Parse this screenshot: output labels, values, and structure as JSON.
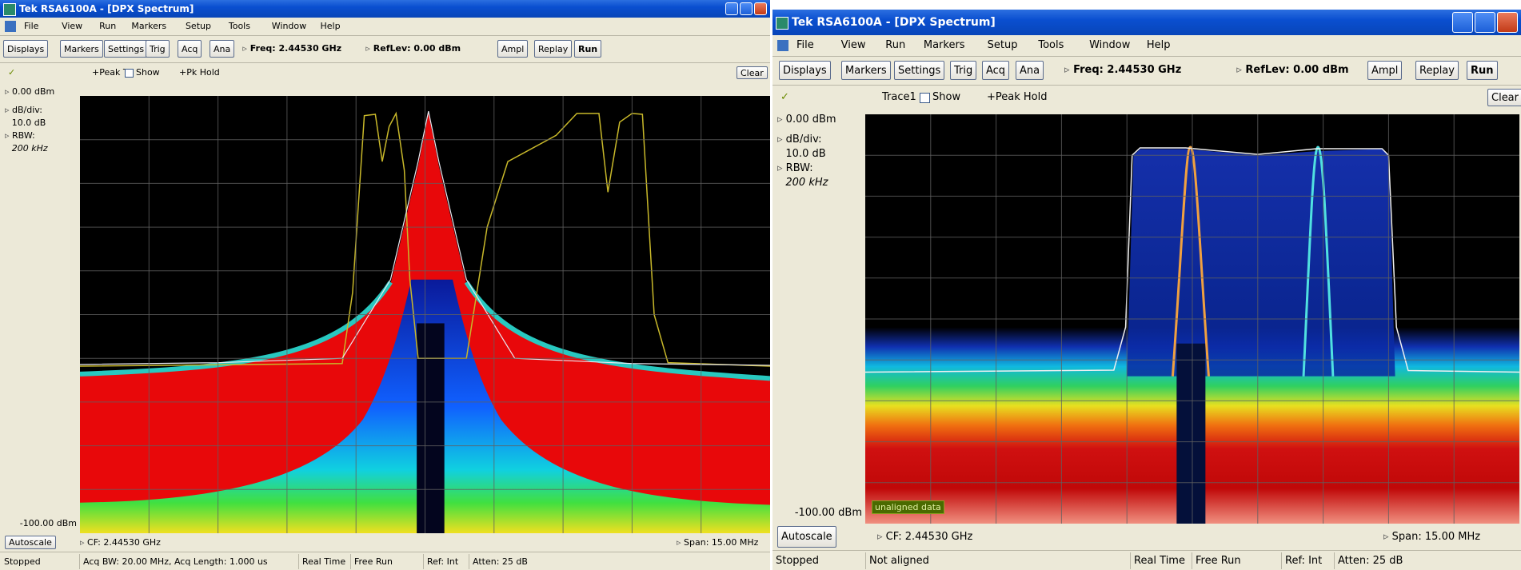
{
  "windows": [
    {
      "title": "Tek RSA6100A - [DPX Spectrum]",
      "menu": [
        "File",
        "View",
        "Run",
        "Markers",
        "Setup",
        "Tools",
        "Window",
        "Help"
      ],
      "toolbar": [
        "Displays",
        "Markers",
        "Settings",
        "Trig",
        "Acq",
        "Ana"
      ],
      "freq": "Freq: 2.44530 GHz",
      "reflev": "RefLev: 0.00 dBm",
      "toolbar_right": [
        "Ampl",
        "Replay",
        "Run"
      ],
      "check": "✓",
      "trace": "+Peak Tr",
      "show": "Show",
      "hold": "+Pk Hold",
      "clear": "Clear",
      "side": [
        "0.00 dBm",
        "dB/div:",
        "10.0 dB",
        "RBW:",
        "200 kHz"
      ],
      "bottom_ref": "-100.00 dBm",
      "autoscale": "Autoscale",
      "cf": "CF: 2.44530 GHz",
      "span": "Span: 15.00 MHz",
      "status": [
        "Stopped",
        "Acq BW: 20.00 MHz, Acq Length: 1.000 us",
        "Real Time",
        "Free Run",
        "Ref: Int",
        "Atten: 25 dB"
      ]
    },
    {
      "title": "Tek RSA6100A - [DPX Spectrum]",
      "menu": [
        "File",
        "View",
        "Run",
        "Markers",
        "Setup",
        "Tools",
        "Window",
        "Help"
      ],
      "toolbar": [
        "Displays",
        "Markers",
        "Settings",
        "Trig",
        "Acq",
        "Ana"
      ],
      "freq": "Freq: 2.44530 GHz",
      "reflev": "RefLev: 0.00 dBm",
      "toolbar_right": [
        "Ampl",
        "Replay",
        "Run"
      ],
      "check": "✓",
      "trace": "Trace1",
      "show": "Show",
      "hold": "+Peak Hold",
      "clear": "Clear",
      "side": [
        "0.00 dBm",
        "dB/div:",
        "10.0 dB",
        "RBW:",
        "200 kHz"
      ],
      "bottom_ref": "-100.00 dBm",
      "autoscale": "Autoscale",
      "cf": "CF: 2.44530 GHz",
      "span": "Span: 15.00 MHz",
      "overlay": "unaligned data",
      "status": [
        "Stopped",
        "Not aligned",
        "Real Time",
        "Free Run",
        "Ref: Int",
        "Atten: 25 dB"
      ]
    }
  ]
}
